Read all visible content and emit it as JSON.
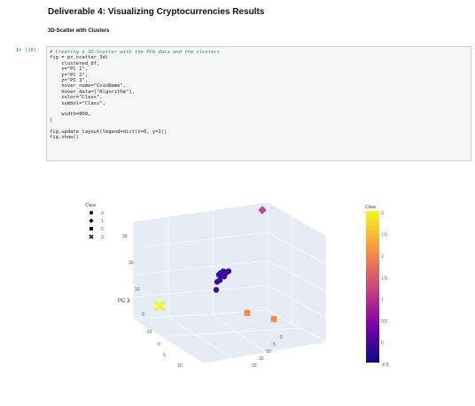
{
  "heading": "Deliverable 4: Visualizing Cryptocurrencies Results",
  "subheading": "3D-Scatter with Clusters",
  "cell": {
    "prompt": "In [28]:",
    "lines": [
      {
        "cls": "cm",
        "text": "# Creating a 3D-Scatter with the PCA data and the clusters"
      },
      {
        "cls": "",
        "text": "fig = px.scatter_3d("
      },
      {
        "cls": "",
        "text": "    clustered_df,"
      },
      {
        "cls": "",
        "text": "    x=\"PC 1\","
      },
      {
        "cls": "",
        "text": "    y=\"PC 2\","
      },
      {
        "cls": "",
        "text": "    z=\"PC 3\","
      },
      {
        "cls": "",
        "text": "    hover_name=\"CoinName\","
      },
      {
        "cls": "",
        "text": "    hover_data=[\"Algorithm\"],"
      },
      {
        "cls": "",
        "text": "    color=\"Class\","
      },
      {
        "cls": "",
        "text": "    symbol=\"Class\","
      },
      {
        "cls": "",
        "text": ""
      },
      {
        "cls": "",
        "text": "    width=800,"
      },
      {
        "cls": "",
        "text": ")"
      },
      {
        "cls": "",
        "text": ""
      },
      {
        "cls": "",
        "text": "fig.update_layout(legend=dict(x=0, y=1))"
      },
      {
        "cls": "",
        "text": "fig.show()"
      }
    ]
  },
  "plot_legend": {
    "title": "Class",
    "items": [
      {
        "symbol": "circle",
        "label": "0"
      },
      {
        "symbol": "diamond",
        "label": "1"
      },
      {
        "symbol": "square",
        "label": "2"
      },
      {
        "symbol": "x",
        "label": "3"
      }
    ]
  },
  "chart_data": {
    "type": "scatter",
    "title": "",
    "zlabel": "PC 3",
    "colorbar": {
      "title": "Class",
      "range": [
        -0.5,
        3
      ],
      "ticks": [
        "3",
        "2.5",
        "2",
        "1.5",
        "1",
        "0.5",
        "0",
        "-0.5"
      ],
      "colors": [
        "#0d0887",
        "#7e03a8",
        "#cc4778",
        "#f89540",
        "#f0f921"
      ]
    },
    "z_axis_ticks": [
      "30",
      "20",
      "10",
      "0",
      "-10"
    ],
    "x_axis_ticks": [
      "0",
      "5",
      "15"
    ],
    "y_axis_ticks": [
      "0",
      "5",
      "10",
      "15",
      "20"
    ],
    "series": [
      {
        "name": "0",
        "symbol": "circle",
        "color": "#3b0aa0",
        "points_px_note": "cluster of points near center"
      },
      {
        "name": "1",
        "symbol": "diamond",
        "color": "#c2419b"
      },
      {
        "name": "2",
        "symbol": "square",
        "color": "#f08a4b"
      },
      {
        "name": "3",
        "symbol": "x",
        "color": "#f0f921"
      }
    ]
  }
}
